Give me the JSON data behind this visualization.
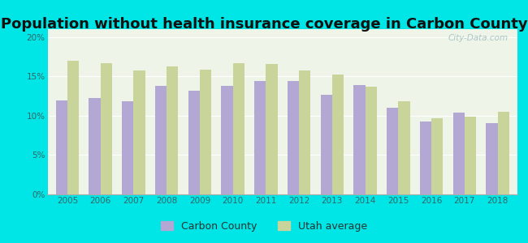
{
  "title": "Population without health insurance coverage in Carbon County",
  "years": [
    2005,
    2006,
    2007,
    2008,
    2009,
    2010,
    2011,
    2012,
    2013,
    2014,
    2015,
    2016,
    2017,
    2018
  ],
  "carbon_county": [
    11.9,
    12.2,
    11.8,
    13.8,
    13.2,
    13.8,
    14.4,
    14.4,
    12.7,
    13.9,
    11.0,
    9.3,
    10.4,
    9.1
  ],
  "utah_average": [
    17.0,
    16.7,
    15.7,
    16.3,
    15.9,
    16.7,
    16.6,
    15.7,
    15.2,
    13.7,
    11.8,
    9.7,
    9.9,
    10.5
  ],
  "carbon_color": "#b3a8d4",
  "utah_color": "#c8d49a",
  "background_outer": "#00e5e5",
  "background_inner": "#eef4e8",
  "ylim": [
    0,
    21
  ],
  "yticks": [
    0,
    5,
    10,
    15,
    20
  ],
  "ytick_labels": [
    "0%",
    "5%",
    "10%",
    "15%",
    "20%"
  ],
  "title_fontsize": 13,
  "bar_width": 0.35,
  "watermark": "City-Data.com",
  "legend_carbon": "Carbon County",
  "legend_utah": "Utah average"
}
